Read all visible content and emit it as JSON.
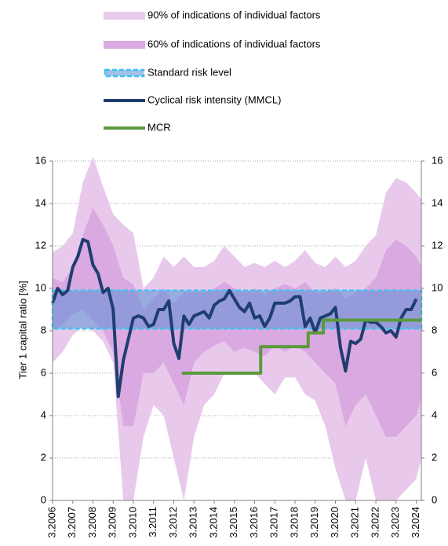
{
  "chart_data": {
    "type": "line",
    "y_label": "Tier 1 capital ratio [%]",
    "xlim": [
      2006,
      2024.25
    ],
    "xticks": [
      {
        "value": 2006,
        "label": "3.2006"
      },
      {
        "value": 2007,
        "label": "3.2007"
      },
      {
        "value": 2008,
        "label": "3.2008"
      },
      {
        "value": 2009,
        "label": "3.2009"
      },
      {
        "value": 2010,
        "label": "3.2010"
      },
      {
        "value": 2011,
        "label": "3.2011"
      },
      {
        "value": 2012,
        "label": "3.2012"
      },
      {
        "value": 2013,
        "label": "3.2013"
      },
      {
        "value": 2014,
        "label": "3.2014"
      },
      {
        "value": 2015,
        "label": "3.2015"
      },
      {
        "value": 2016,
        "label": "3.2016"
      },
      {
        "value": 2017,
        "label": "3.2017"
      },
      {
        "value": 2018,
        "label": "3.2018"
      },
      {
        "value": 2019,
        "label": "3.2019"
      },
      {
        "value": 2020,
        "label": "3.2020"
      },
      {
        "value": 2021,
        "label": "3.2021"
      },
      {
        "value": 2022,
        "label": "3.2022"
      },
      {
        "value": 2023,
        "label": "3.2023"
      },
      {
        "value": 2024,
        "label": "3.2024"
      }
    ],
    "ylim": [
      0,
      16
    ],
    "yticks": [
      0,
      2,
      4,
      6,
      8,
      10,
      12,
      14,
      16
    ],
    "y2lim": [
      0,
      16
    ],
    "y2ticks": [
      0,
      2,
      4,
      6,
      8,
      10,
      12,
      14,
      16
    ],
    "grid": true,
    "bands": [
      {
        "name": "90% of indications of individual factors",
        "color": "#e8c9ec",
        "x": [
          2006,
          2006.5,
          2007,
          2007.5,
          2008,
          2008.5,
          2009,
          2009.5,
          2010,
          2010.5,
          2011,
          2011.5,
          2012,
          2012.5,
          2013,
          2013.5,
          2014,
          2014.5,
          2015,
          2015.5,
          2016,
          2016.5,
          2017,
          2017.5,
          2018,
          2018.5,
          2019,
          2019.5,
          2020,
          2020.5,
          2021,
          2021.5,
          2022,
          2022.5,
          2023,
          2023.5,
          2024,
          2024.25
        ],
        "upper": [
          11.7,
          12.0,
          12.6,
          15.0,
          16.2,
          14.8,
          13.5,
          13.0,
          12.6,
          10.0,
          10.5,
          11.5,
          11.0,
          11.5,
          11.0,
          11.0,
          11.3,
          12.0,
          11.5,
          11.0,
          11.2,
          11.0,
          11.3,
          11.0,
          11.3,
          11.8,
          11.2,
          11.0,
          11.5,
          11.0,
          11.3,
          12.0,
          12.5,
          14.5,
          15.2,
          15.0,
          14.5,
          14.2
        ],
        "lower": [
          6.5,
          7.0,
          7.8,
          8.2,
          8.0,
          7.5,
          6.5,
          0,
          0,
          3.0,
          4.5,
          4.0,
          2.0,
          0,
          3.0,
          4.5,
          5.0,
          6.0,
          6.0,
          6.0,
          6.0,
          5.5,
          5.0,
          5.8,
          5.8,
          5.0,
          4.7,
          3.5,
          1.5,
          0,
          0,
          2.0,
          0,
          0,
          0,
          0.5,
          1.0,
          2.0
        ]
      },
      {
        "name": "60% of indications of individual factors",
        "color": "#dba9e1",
        "x": [
          2006,
          2006.5,
          2007,
          2007.5,
          2008,
          2008.5,
          2009,
          2009.5,
          2010,
          2010.5,
          2011,
          2011.5,
          2012,
          2012.5,
          2013,
          2013.5,
          2014,
          2014.5,
          2015,
          2015.5,
          2016,
          2016.5,
          2017,
          2017.5,
          2018,
          2018.5,
          2019,
          2019.5,
          2020,
          2020.5,
          2021,
          2021.5,
          2022,
          2022.5,
          2023,
          2023.5,
          2024,
          2024.25
        ],
        "upper": [
          10.5,
          10.3,
          11.0,
          12.5,
          13.8,
          13.0,
          12.0,
          10.5,
          10.2,
          9.0,
          9.5,
          10.0,
          9.3,
          9.8,
          9.8,
          9.8,
          10.0,
          10.3,
          10.0,
          9.8,
          10.0,
          9.7,
          10.0,
          10.2,
          10.0,
          10.3,
          9.8,
          9.8,
          10.0,
          9.5,
          9.8,
          10.0,
          10.5,
          11.8,
          12.3,
          12.0,
          11.5,
          11.0
        ],
        "lower": [
          8.0,
          8.3,
          8.8,
          9.0,
          8.5,
          8.0,
          7.0,
          3.5,
          3.5,
          6.0,
          6.0,
          6.5,
          5.5,
          4.5,
          6.5,
          7.0,
          7.3,
          7.5,
          7.0,
          7.2,
          7.0,
          6.8,
          7.3,
          7.0,
          7.3,
          7.0,
          6.5,
          6.0,
          5.5,
          3.5,
          4.5,
          5.0,
          4.0,
          3.0,
          3.0,
          3.5,
          4.0,
          4.8
        ]
      }
    ],
    "standard_risk_level": {
      "name": "Standard risk level",
      "lower": 8.1,
      "upper": 9.9,
      "color": "#5b8fd6",
      "border_color": "#3ec3f0"
    },
    "series": [
      {
        "name": "Cyclical risk intensity (MMCL)",
        "color": "#1f3e70",
        "x": [
          2006,
          2006.25,
          2006.5,
          2006.75,
          2007,
          2007.25,
          2007.5,
          2007.75,
          2008,
          2008.25,
          2008.5,
          2008.75,
          2009,
          2009.25,
          2009.5,
          2009.75,
          2010,
          2010.25,
          2010.5,
          2010.75,
          2011,
          2011.25,
          2011.5,
          2011.75,
          2012,
          2012.25,
          2012.5,
          2012.75,
          2013,
          2013.25,
          2013.5,
          2013.75,
          2014,
          2014.25,
          2014.5,
          2014.75,
          2015,
          2015.25,
          2015.5,
          2015.75,
          2016,
          2016.25,
          2016.5,
          2016.75,
          2017,
          2017.25,
          2017.5,
          2017.75,
          2018,
          2018.25,
          2018.5,
          2018.75,
          2019,
          2019.25,
          2019.5,
          2019.75,
          2020,
          2020.25,
          2020.5,
          2020.75,
          2021,
          2021.25,
          2021.5,
          2021.75,
          2022,
          2022.25,
          2022.5,
          2022.75,
          2023,
          2023.25,
          2023.5,
          2023.75,
          2024
        ],
        "values": [
          9.3,
          10.0,
          9.7,
          9.9,
          11.0,
          11.5,
          12.3,
          12.2,
          11.1,
          10.7,
          9.8,
          10.0,
          9.0,
          4.9,
          6.6,
          7.6,
          8.6,
          8.7,
          8.6,
          8.2,
          8.3,
          9.0,
          9.0,
          9.4,
          7.4,
          6.7,
          8.7,
          8.3,
          8.7,
          8.8,
          8.9,
          8.6,
          9.2,
          9.4,
          9.5,
          9.9,
          9.5,
          9.1,
          8.9,
          9.3,
          8.6,
          8.7,
          8.2,
          8.6,
          9.3,
          9.3,
          9.3,
          9.4,
          9.6,
          9.6,
          8.2,
          8.6,
          7.9,
          8.6,
          8.7,
          8.8,
          9.1,
          7.2,
          6.1,
          7.5,
          7.4,
          7.6,
          8.5,
          8.4,
          8.4,
          8.2,
          7.9,
          8.0,
          7.7,
          8.6,
          9.0,
          9.0,
          9.5
        ]
      },
      {
        "name": "MCR",
        "color": "#5b9a3c",
        "x": [
          2012.4,
          2016.3,
          2016.3,
          2018.65,
          2018.65,
          2019.4,
          2019.4,
          2024.25
        ],
        "values": [
          6.0,
          6.0,
          7.25,
          7.25,
          7.9,
          7.9,
          8.5,
          8.5
        ]
      }
    ]
  }
}
